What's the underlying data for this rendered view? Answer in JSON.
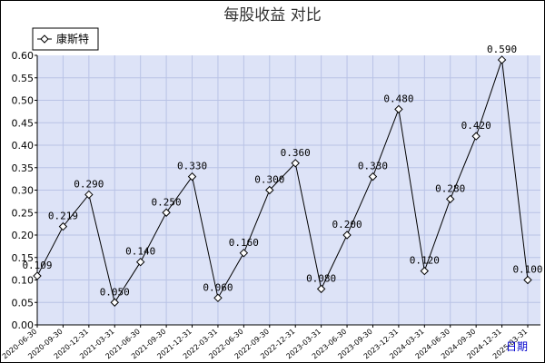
{
  "chart_data": {
    "type": "line",
    "title": "每股收益  对比",
    "xlabel": "日期",
    "ylabel": "",
    "ylim": [
      0,
      0.6
    ],
    "y_ticks": [
      "0.00",
      "0.05",
      "0.10",
      "0.15",
      "0.20",
      "0.25",
      "0.30",
      "0.35",
      "0.40",
      "0.45",
      "0.50",
      "0.55",
      "0.60"
    ],
    "grid": true,
    "legend_position": "top-left",
    "categories": [
      "2020-06-30",
      "2020-09-30",
      "2020-12-31",
      "2021-03-31",
      "2021-06-30",
      "2021-09-30",
      "2021-12-31",
      "2022-03-31",
      "2022-06-30",
      "2022-09-30",
      "2022-12-31",
      "2023-03-31",
      "2023-06-30",
      "2023-09-30",
      "2023-12-31",
      "2024-03-31",
      "2024-06-30",
      "2024-09-30",
      "2024-12-31",
      "2025-03-31"
    ],
    "series": [
      {
        "name": "康斯特",
        "values": [
          0.109,
          0.219,
          0.29,
          0.05,
          0.14,
          0.25,
          0.33,
          0.06,
          0.16,
          0.3,
          0.36,
          0.08,
          0.2,
          0.33,
          0.48,
          0.12,
          0.28,
          0.42,
          0.59,
          0.1
        ],
        "labels": [
          "0.109",
          "0.219",
          "0.290",
          "0.050",
          "0.140",
          "0.250",
          "0.330",
          "0.060",
          "0.160",
          "0.300",
          "0.360",
          "0.080",
          "0.200",
          "0.330",
          "0.480",
          "0.120",
          "0.280",
          "0.420",
          "0.590",
          "0.100"
        ]
      }
    ],
    "colors": {
      "plot_background": "#dde3f7",
      "grid": "#b9c3e6",
      "line": "#000000",
      "marker_fill": "#ffffff",
      "axis": "#000000"
    }
  }
}
